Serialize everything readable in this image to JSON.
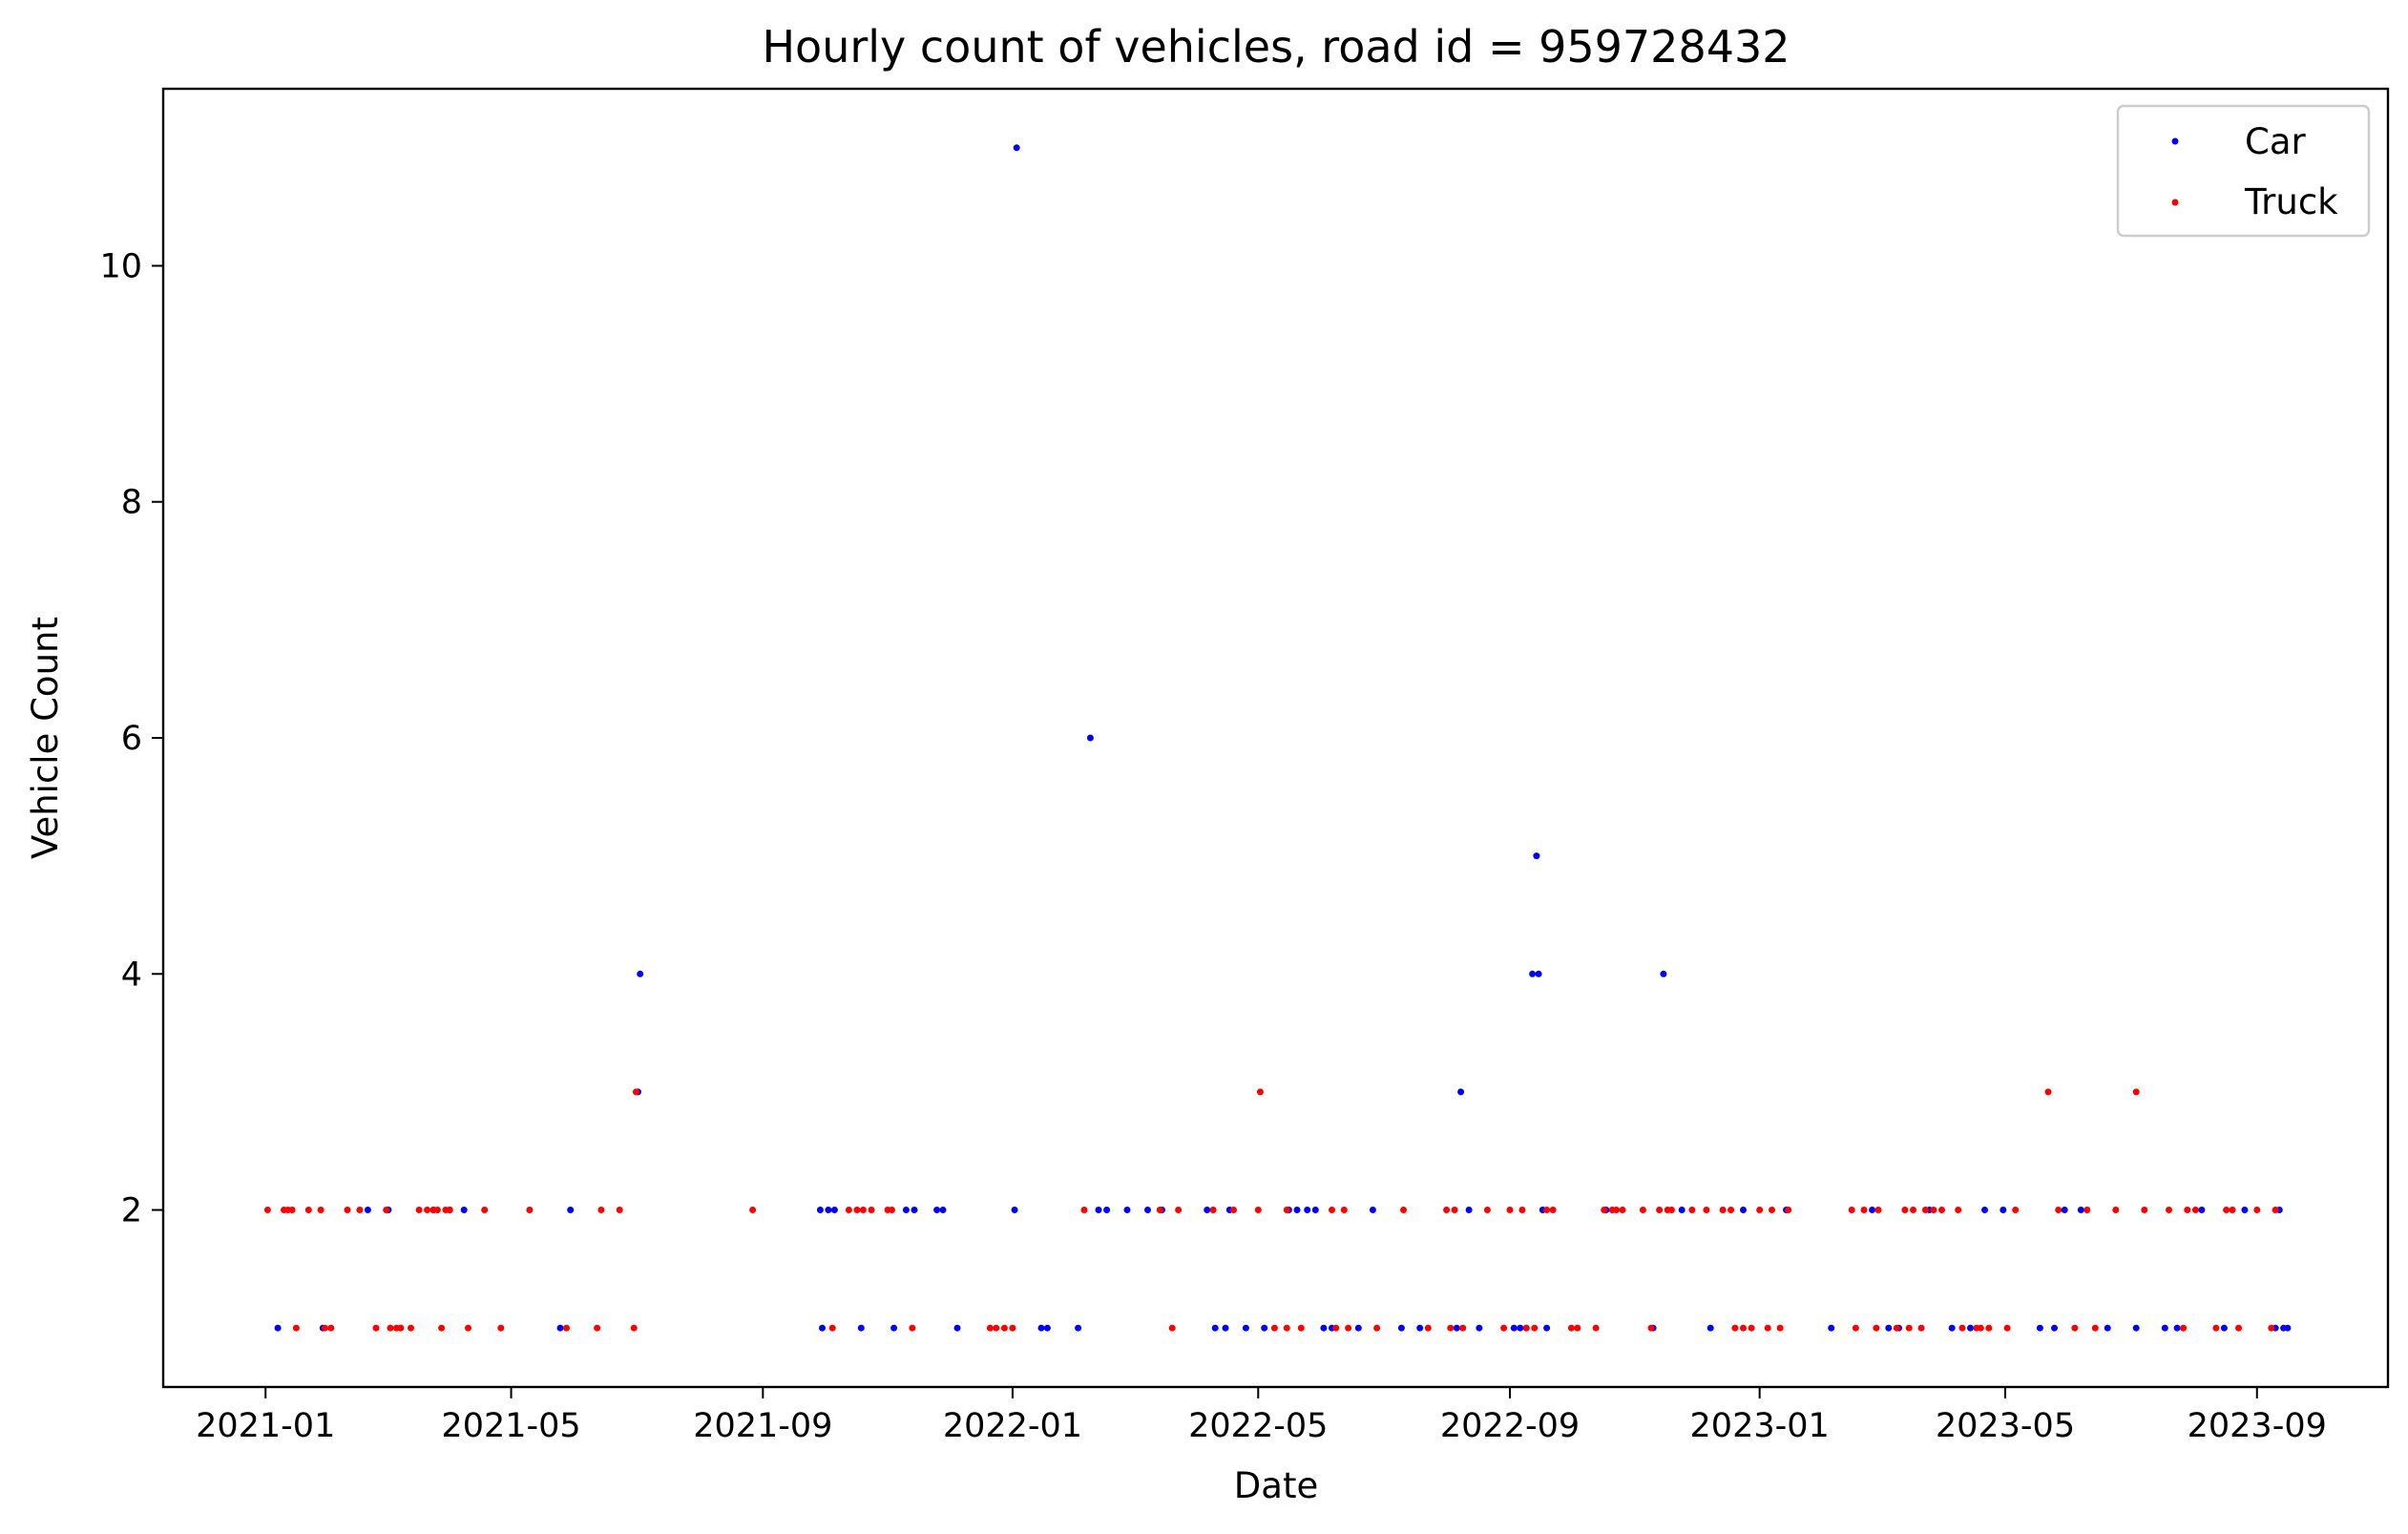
{
  "chart_data": {
    "type": "scatter",
    "title": "Hourly count of vehicles, road id = 959728432",
    "xlabel": "Date",
    "ylabel": "Vehicle Count",
    "xlim": [
      "2020-11-12",
      "2023-11-04"
    ],
    "ylim": [
      0.5,
      11.5
    ],
    "x_ticks": [
      "2021-01-01",
      "2021-05-01",
      "2021-09-01",
      "2022-01-01",
      "2022-05-01",
      "2022-09-01",
      "2023-01-01",
      "2023-05-01",
      "2023-09-01"
    ],
    "x_tick_labels": [
      "2021-01",
      "2021-05",
      "2021-09",
      "2022-01",
      "2022-05",
      "2022-09",
      "2023-01",
      "2023-05",
      "2023-09"
    ],
    "y_ticks": [
      2,
      4,
      6,
      8,
      10
    ],
    "y_tick_labels": [
      "2",
      "4",
      "6",
      "8",
      "10"
    ],
    "grid": false,
    "legend_position": "top-right",
    "series": [
      {
        "name": "Car",
        "color": "#0000ff",
        "points": [
          [
            "2021-01-07",
            1
          ],
          [
            "2021-01-29",
            1
          ],
          [
            "2021-02-20",
            2
          ],
          [
            "2021-03-02",
            2
          ],
          [
            "2021-03-24",
            2
          ],
          [
            "2021-04-01",
            2
          ],
          [
            "2021-04-08",
            2
          ],
          [
            "2021-05-25",
            1
          ],
          [
            "2021-05-30",
            2
          ],
          [
            "2021-07-02",
            3
          ],
          [
            "2021-07-03",
            4
          ],
          [
            "2021-09-29",
            2
          ],
          [
            "2021-09-30",
            1
          ],
          [
            "2021-10-03",
            2
          ],
          [
            "2021-10-06",
            2
          ],
          [
            "2021-10-19",
            1
          ],
          [
            "2021-11-04",
            1
          ],
          [
            "2021-11-10",
            2
          ],
          [
            "2021-11-14",
            2
          ],
          [
            "2021-11-25",
            2
          ],
          [
            "2021-11-28",
            2
          ],
          [
            "2021-12-05",
            1
          ],
          [
            "2022-01-02",
            2
          ],
          [
            "2022-01-03",
            11
          ],
          [
            "2022-01-15",
            1
          ],
          [
            "2022-01-18",
            1
          ],
          [
            "2022-02-02",
            1
          ],
          [
            "2022-02-08",
            6
          ],
          [
            "2022-02-12",
            2
          ],
          [
            "2022-02-16",
            2
          ],
          [
            "2022-02-26",
            2
          ],
          [
            "2022-03-08",
            2
          ],
          [
            "2022-03-15",
            2
          ],
          [
            "2022-04-06",
            2
          ],
          [
            "2022-04-10",
            1
          ],
          [
            "2022-04-15",
            1
          ],
          [
            "2022-04-17",
            2
          ],
          [
            "2022-04-25",
            1
          ],
          [
            "2022-05-04",
            1
          ],
          [
            "2022-05-16",
            2
          ],
          [
            "2022-05-20",
            2
          ],
          [
            "2022-05-25",
            2
          ],
          [
            "2022-05-29",
            2
          ],
          [
            "2022-06-02",
            1
          ],
          [
            "2022-06-06",
            1
          ],
          [
            "2022-06-19",
            1
          ],
          [
            "2022-06-26",
            2
          ],
          [
            "2022-07-10",
            1
          ],
          [
            "2022-07-19",
            1
          ],
          [
            "2022-08-06",
            1
          ],
          [
            "2022-08-08",
            3
          ],
          [
            "2022-08-12",
            2
          ],
          [
            "2022-08-17",
            1
          ],
          [
            "2022-09-03",
            1
          ],
          [
            "2022-09-06",
            1
          ],
          [
            "2022-09-09",
            1
          ],
          [
            "2022-09-12",
            4
          ],
          [
            "2022-09-14",
            5
          ],
          [
            "2022-09-15",
            4
          ],
          [
            "2022-09-17",
            2
          ],
          [
            "2022-09-19",
            1
          ],
          [
            "2022-10-18",
            2
          ],
          [
            "2022-11-10",
            1
          ],
          [
            "2022-11-15",
            4
          ],
          [
            "2022-11-24",
            2
          ],
          [
            "2022-12-08",
            1
          ],
          [
            "2022-12-24",
            2
          ],
          [
            "2023-01-14",
            2
          ],
          [
            "2023-02-05",
            1
          ],
          [
            "2023-02-25",
            2
          ],
          [
            "2023-03-05",
            1
          ],
          [
            "2023-03-10",
            1
          ],
          [
            "2023-03-25",
            2
          ],
          [
            "2023-04-05",
            1
          ],
          [
            "2023-04-14",
            1
          ],
          [
            "2023-04-21",
            2
          ],
          [
            "2023-04-30",
            2
          ],
          [
            "2023-05-18",
            1
          ],
          [
            "2023-05-25",
            1
          ],
          [
            "2023-05-30",
            2
          ],
          [
            "2023-06-07",
            2
          ],
          [
            "2023-06-20",
            1
          ],
          [
            "2023-07-04",
            1
          ],
          [
            "2023-07-18",
            1
          ],
          [
            "2023-07-24",
            1
          ],
          [
            "2023-08-05",
            2
          ],
          [
            "2023-08-16",
            1
          ],
          [
            "2023-08-26",
            2
          ],
          [
            "2023-09-10",
            1
          ],
          [
            "2023-09-12",
            2
          ],
          [
            "2023-09-14",
            1
          ],
          [
            "2023-09-16",
            1
          ]
        ]
      },
      {
        "name": "Truck",
        "color": "#ff0000",
        "points": [
          [
            "2021-01-02",
            2
          ],
          [
            "2021-01-10",
            2
          ],
          [
            "2021-01-12",
            2
          ],
          [
            "2021-01-14",
            2
          ],
          [
            "2021-01-16",
            1
          ],
          [
            "2021-01-22",
            2
          ],
          [
            "2021-01-28",
            2
          ],
          [
            "2021-01-30",
            1
          ],
          [
            "2021-02-02",
            1
          ],
          [
            "2021-02-10",
            2
          ],
          [
            "2021-02-16",
            2
          ],
          [
            "2021-02-24",
            1
          ],
          [
            "2021-03-01",
            2
          ],
          [
            "2021-03-03",
            1
          ],
          [
            "2021-03-06",
            1
          ],
          [
            "2021-03-08",
            1
          ],
          [
            "2021-03-13",
            1
          ],
          [
            "2021-03-17",
            2
          ],
          [
            "2021-03-21",
            2
          ],
          [
            "2021-03-24",
            2
          ],
          [
            "2021-03-26",
            2
          ],
          [
            "2021-03-28",
            1
          ],
          [
            "2021-03-30",
            2
          ],
          [
            "2021-04-01",
            2
          ],
          [
            "2021-04-10",
            1
          ],
          [
            "2021-04-18",
            2
          ],
          [
            "2021-04-26",
            1
          ],
          [
            "2021-05-10",
            2
          ],
          [
            "2021-05-28",
            1
          ],
          [
            "2021-06-12",
            1
          ],
          [
            "2021-06-14",
            2
          ],
          [
            "2021-06-23",
            2
          ],
          [
            "2021-06-30",
            1
          ],
          [
            "2021-07-01",
            3
          ],
          [
            "2021-08-27",
            2
          ],
          [
            "2021-10-05",
            1
          ],
          [
            "2021-10-13",
            2
          ],
          [
            "2021-10-17",
            2
          ],
          [
            "2021-10-20",
            2
          ],
          [
            "2021-10-24",
            2
          ],
          [
            "2021-11-01",
            2
          ],
          [
            "2021-11-03",
            2
          ],
          [
            "2021-11-13",
            1
          ],
          [
            "2021-12-21",
            1
          ],
          [
            "2021-12-24",
            1
          ],
          [
            "2021-12-28",
            1
          ],
          [
            "2022-01-01",
            1
          ],
          [
            "2022-02-05",
            2
          ],
          [
            "2022-03-14",
            2
          ],
          [
            "2022-03-20",
            1
          ],
          [
            "2022-03-23",
            2
          ],
          [
            "2022-04-09",
            2
          ],
          [
            "2022-04-19",
            2
          ],
          [
            "2022-05-01",
            2
          ],
          [
            "2022-05-02",
            3
          ],
          [
            "2022-05-09",
            1
          ],
          [
            "2022-05-15",
            2
          ],
          [
            "2022-05-15",
            1
          ],
          [
            "2022-05-22",
            1
          ],
          [
            "2022-06-06",
            2
          ],
          [
            "2022-06-08",
            1
          ],
          [
            "2022-06-12",
            2
          ],
          [
            "2022-06-14",
            1
          ],
          [
            "2022-06-28",
            1
          ],
          [
            "2022-07-11",
            2
          ],
          [
            "2022-07-23",
            1
          ],
          [
            "2022-08-01",
            2
          ],
          [
            "2022-08-03",
            1
          ],
          [
            "2022-08-05",
            2
          ],
          [
            "2022-08-09",
            1
          ],
          [
            "2022-08-21",
            2
          ],
          [
            "2022-08-29",
            1
          ],
          [
            "2022-09-01",
            2
          ],
          [
            "2022-09-07",
            2
          ],
          [
            "2022-09-09",
            1
          ],
          [
            "2022-09-13",
            1
          ],
          [
            "2022-09-19",
            2
          ],
          [
            "2022-09-22",
            2
          ],
          [
            "2022-10-01",
            1
          ],
          [
            "2022-10-04",
            1
          ],
          [
            "2022-10-13",
            1
          ],
          [
            "2022-10-17",
            2
          ],
          [
            "2022-10-21",
            2
          ],
          [
            "2022-10-23",
            2
          ],
          [
            "2022-10-26",
            2
          ],
          [
            "2022-11-05",
            2
          ],
          [
            "2022-11-09",
            1
          ],
          [
            "2022-11-13",
            2
          ],
          [
            "2022-11-17",
            2
          ],
          [
            "2022-11-19",
            2
          ],
          [
            "2022-11-29",
            2
          ],
          [
            "2022-12-06",
            2
          ],
          [
            "2022-12-14",
            2
          ],
          [
            "2022-12-18",
            2
          ],
          [
            "2022-12-20",
            1
          ],
          [
            "2022-12-24",
            1
          ],
          [
            "2022-12-28",
            1
          ],
          [
            "2023-01-01",
            2
          ],
          [
            "2023-01-05",
            1
          ],
          [
            "2023-01-07",
            2
          ],
          [
            "2023-01-11",
            1
          ],
          [
            "2023-01-15",
            2
          ],
          [
            "2023-02-15",
            2
          ],
          [
            "2023-02-17",
            1
          ],
          [
            "2023-02-21",
            2
          ],
          [
            "2023-02-27",
            1
          ],
          [
            "2023-02-28",
            2
          ],
          [
            "2023-03-09",
            1
          ],
          [
            "2023-03-13",
            2
          ],
          [
            "2023-03-15",
            1
          ],
          [
            "2023-03-17",
            2
          ],
          [
            "2023-03-21",
            1
          ],
          [
            "2023-03-23",
            2
          ],
          [
            "2023-03-27",
            2
          ],
          [
            "2023-03-31",
            2
          ],
          [
            "2023-04-08",
            2
          ],
          [
            "2023-04-10",
            1
          ],
          [
            "2023-04-17",
            1
          ],
          [
            "2023-04-19",
            1
          ],
          [
            "2023-04-23",
            1
          ],
          [
            "2023-05-02",
            1
          ],
          [
            "2023-05-06",
            2
          ],
          [
            "2023-05-22",
            3
          ],
          [
            "2023-05-27",
            2
          ],
          [
            "2023-06-04",
            1
          ],
          [
            "2023-06-10",
            2
          ],
          [
            "2023-06-14",
            1
          ],
          [
            "2023-06-24",
            2
          ],
          [
            "2023-07-04",
            3
          ],
          [
            "2023-07-08",
            2
          ],
          [
            "2023-07-20",
            2
          ],
          [
            "2023-07-27",
            1
          ],
          [
            "2023-07-29",
            2
          ],
          [
            "2023-08-02",
            2
          ],
          [
            "2023-08-12",
            1
          ],
          [
            "2023-08-17",
            2
          ],
          [
            "2023-08-20",
            2
          ],
          [
            "2023-08-23",
            1
          ],
          [
            "2023-09-01",
            2
          ],
          [
            "2023-09-08",
            1
          ],
          [
            "2023-09-10",
            2
          ]
        ]
      }
    ]
  }
}
